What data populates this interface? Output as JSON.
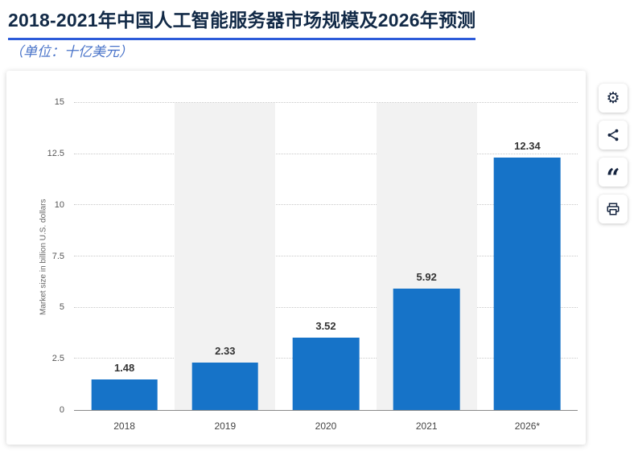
{
  "page": {
    "title": "2018-2021年中国人工智能服务器市场规模及2026年预测",
    "subtitle": "（单位：十亿美元）"
  },
  "chart_data": {
    "type": "bar",
    "title": "2018-2021年中国人工智能服务器市场规模及2026年预测",
    "unit_note": "（单位：十亿美元）",
    "categories": [
      "2018",
      "2019",
      "2020",
      "2021",
      "2026*"
    ],
    "values": [
      1.48,
      2.33,
      3.52,
      5.92,
      12.34
    ],
    "value_labels": [
      "1.48",
      "2.33",
      "3.52",
      "5.92",
      "12.34"
    ],
    "xlabel": "",
    "ylabel": "Market size in billion U.S. dollars",
    "ylim": [
      0,
      15
    ],
    "ytick_labels": [
      "0",
      "2.5",
      "5",
      "7.5",
      "10",
      "12.5",
      "15"
    ],
    "grid": "horizontal-dotted",
    "legend": "none",
    "band_pattern": "alternating-light-gray"
  },
  "colors": {
    "bar": "#1673c8",
    "band": "#f2f2f2",
    "title": "#122a47",
    "underline": "#2c5bd9",
    "subtitle": "#4a74c9",
    "icon": "#15243f"
  },
  "toolbar": {
    "buttons": [
      {
        "name": "settings",
        "glyph": "⚙"
      },
      {
        "name": "share",
        "glyph": ""
      },
      {
        "name": "quote",
        "glyph": "“"
      },
      {
        "name": "print",
        "glyph": ""
      }
    ]
  }
}
